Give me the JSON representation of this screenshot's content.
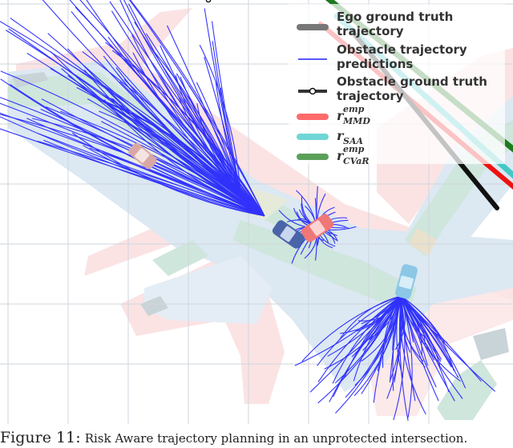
{
  "chart_data": {
    "type": "line",
    "title": "",
    "xlabel": "",
    "ylabel": "",
    "grid": true,
    "legend_position": "top-right",
    "legend": [
      {
        "label_lines": [
          "Ego ground truth",
          "trajectory"
        ],
        "color": "#777777",
        "style": "thick-line"
      },
      {
        "label_lines": [
          "Obstacle trajectory",
          "predictions"
        ],
        "color": "#1f1fff",
        "style": "thin-line"
      },
      {
        "label_lines": [
          "Obstacle ground truth",
          "trajectory"
        ],
        "color": "#333333",
        "style": "line-with-circle-markers"
      },
      {
        "math": "r",
        "sup": "emp",
        "sub": "MMD",
        "color": "#ff6b6b",
        "style": "thick-line"
      },
      {
        "math": "r",
        "sup": "",
        "sub": "SAA",
        "color": "#6fd6d6",
        "style": "thick-line"
      },
      {
        "math": "r",
        "sup": "emp",
        "sub": "CVaR",
        "color": "#5aa05a",
        "style": "thick-line"
      }
    ],
    "series": [
      {
        "id": "ego_gt",
        "color": "#111111",
        "x": [
          12,
          30
        ],
        "y": [
          46,
          24
        ]
      },
      {
        "id": "mmd",
        "color": "#ee1111",
        "x": [
          8,
          34
        ],
        "y": [
          47,
          25
        ]
      },
      {
        "id": "saa",
        "color": "#45c7c7",
        "x": [
          10,
          36
        ],
        "y": [
          48,
          24.5
        ]
      },
      {
        "id": "cvar",
        "color": "#1f7a1f",
        "x": [
          3,
          38
        ],
        "y": [
          55,
          26.5
        ]
      },
      {
        "id": "obstacle_gt_1",
        "color": "#111111",
        "x": [
          -28,
          -6
        ],
        "y": [
          69,
          50
        ]
      },
      {
        "id": "obstacle_gt_2",
        "color": "#111111",
        "x": [
          41,
          42
        ],
        "y": [
          26,
          12
        ]
      }
    ]
  },
  "caption": {
    "label": "Figure 11:",
    "text": "Risk Aware trajectory planning in an unprotected intersection."
  },
  "colors": {
    "road_pink": "#fbe3e4",
    "road_blue": "#dce8f2",
    "road_green": "#cfe6dc",
    "road_gray": "#c9d4d8",
    "grid": "#cfd6dc",
    "prediction_blue": "#1f1fff"
  }
}
